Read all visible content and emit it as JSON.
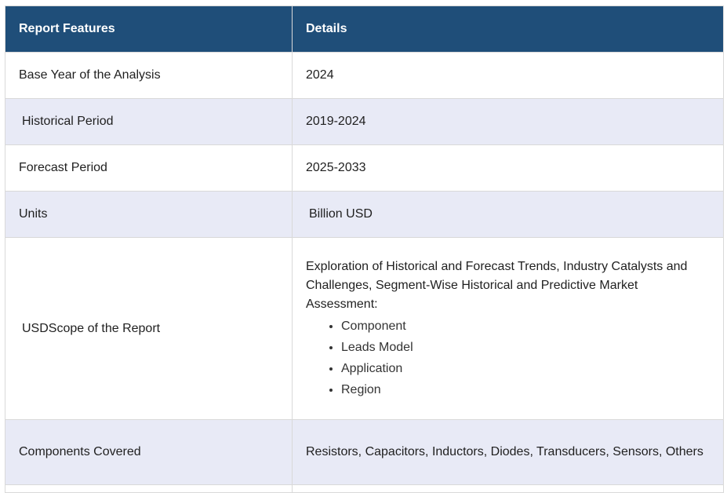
{
  "table": {
    "headers": [
      "Report Features",
      "Details"
    ],
    "rows": [
      {
        "feature": "Base Year of the Analysis",
        "detail": "2024"
      },
      {
        "feature": " Historical Period",
        "detail": "2019-2024"
      },
      {
        "feature": "Forecast Period",
        "detail": "2025-2033"
      },
      {
        "feature": "Units",
        "detail": " Billion USD"
      },
      {
        "feature": " USDScope of the Report",
        "detail": "Exploration of Historical and Forecast Trends, Industry Catalysts and Challenges, Segment-Wise Historical and Predictive Market Assessment:",
        "list": [
          "Component",
          "Leads Model",
          "Application",
          "Region"
        ]
      },
      {
        "feature": "Components Covered",
        "detail": "Resistors, Capacitors, Inductors, Diodes, Transducers, Sensors, Others"
      }
    ]
  }
}
